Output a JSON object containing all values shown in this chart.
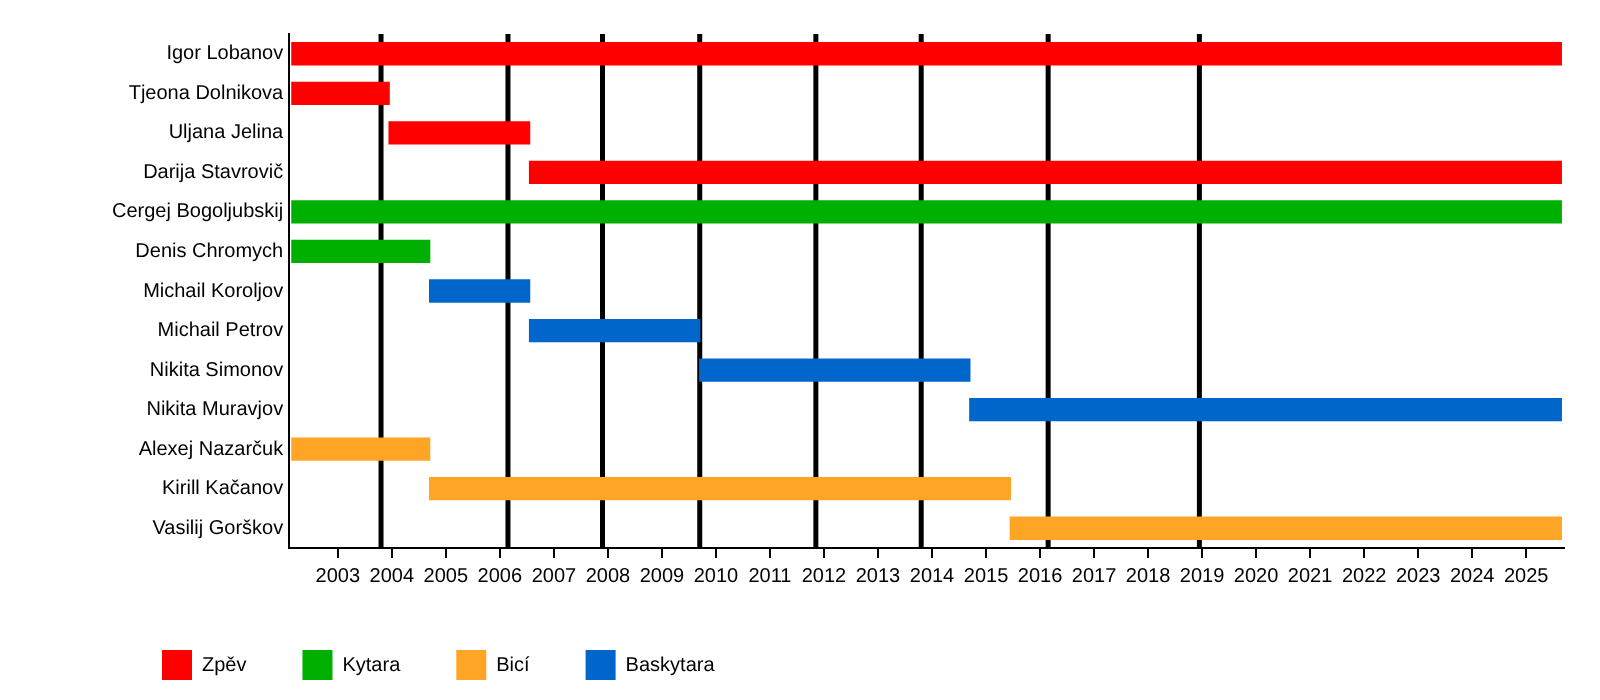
{
  "chart_data": {
    "type": "bar",
    "orientation": "horizontal",
    "categories": [
      "Igor Lobanov",
      "Tjeona Dolnikova",
      "Uljana Jelina",
      "Darija Stavrovič",
      "Cergej Bogoljubskij",
      "Denis Chromych",
      "Michail Koroljov",
      "Michail Petrov",
      "Nikita Simonov",
      "Nikita Muravjov",
      "Alexej Nazarčuk",
      "Kirill Kačanov",
      "Vasilij Gorškov"
    ],
    "series": [
      {
        "name": "Zpěv",
        "color": "#ff0000",
        "base": [
          2002.15,
          2002.15,
          2003.95,
          2006.55,
          null,
          null,
          null,
          null,
          null,
          null,
          null,
          null,
          null
        ],
        "values": [
          23.5,
          1.8,
          2.6,
          19.1,
          null,
          null,
          null,
          null,
          null,
          null,
          null,
          null,
          null
        ]
      },
      {
        "name": "Kytara",
        "color": "#00b000",
        "base": [
          null,
          null,
          null,
          null,
          2002.15,
          2002.15,
          null,
          null,
          null,
          null,
          null,
          null,
          null
        ],
        "values": [
          null,
          null,
          null,
          null,
          23.5,
          2.55,
          null,
          null,
          null,
          null,
          null,
          null,
          null
        ]
      },
      {
        "name": "Bicí",
        "color": "#ffa526",
        "base": [
          null,
          null,
          null,
          null,
          null,
          null,
          null,
          null,
          null,
          null,
          2002.15,
          2004.7,
          2015.45
        ],
        "values": [
          null,
          null,
          null,
          null,
          null,
          null,
          null,
          null,
          null,
          null,
          2.55,
          10.75,
          10.2
        ]
      },
      {
        "name": "Baskytara",
        "color": "#0066cc",
        "base": [
          null,
          null,
          null,
          null,
          null,
          null,
          2004.7,
          2006.55,
          2009.7,
          2014.7,
          null,
          null,
          null
        ],
        "values": [
          null,
          null,
          null,
          null,
          null,
          null,
          1.85,
          3.15,
          5.0,
          10.95,
          null,
          null,
          null
        ]
      }
    ],
    "xlim": [
      2002.1,
      2025.7
    ],
    "xticks": [
      2003,
      2004,
      2005,
      2006,
      2007,
      2008,
      2009,
      2010,
      2011,
      2012,
      2013,
      2014,
      2015,
      2016,
      2017,
      2018,
      2019,
      2020,
      2021,
      2022,
      2023,
      2024,
      2025
    ],
    "ref_lines": [
      {
        "axis": "x",
        "value": 2003.8,
        "color": "#000000"
      },
      {
        "axis": "x",
        "value": 2006.15,
        "color": "#000000"
      },
      {
        "axis": "x",
        "value": 2007.9,
        "color": "#000000"
      },
      {
        "axis": "x",
        "value": 2009.7,
        "color": "#000000"
      },
      {
        "axis": "x",
        "value": 2011.85,
        "color": "#000000"
      },
      {
        "axis": "x",
        "value": 2013.8,
        "color": "#000000"
      },
      {
        "axis": "x",
        "value": 2016.15,
        "color": "#000000"
      },
      {
        "axis": "x",
        "value": 2018.95,
        "color": "#000000"
      }
    ],
    "grid": false,
    "legend": "bottom left"
  }
}
